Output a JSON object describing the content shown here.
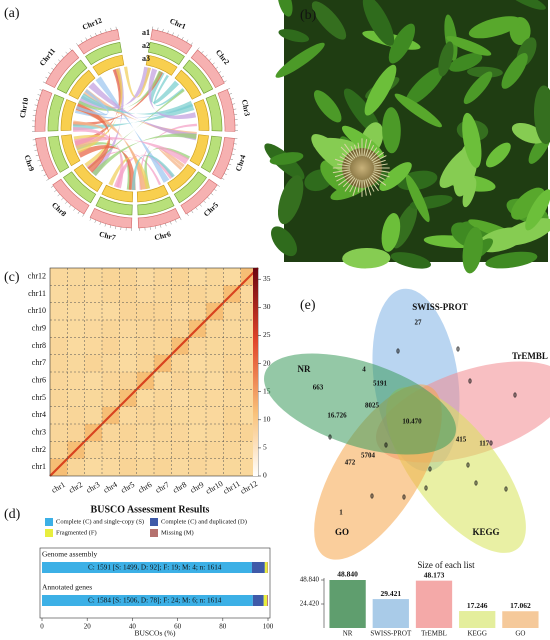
{
  "panel_labels": [
    "(a)",
    "(b)",
    "(c)",
    "(d)",
    "(e)"
  ],
  "chart_data": [
    {
      "type": "circos",
      "chromosomes": [
        "Chr1",
        "Chr2",
        "Chr3",
        "Chr4",
        "Chr5",
        "Chr6",
        "Chr7",
        "Chr8",
        "Chr9",
        "Chr10",
        "Chr11",
        "Chr12"
      ],
      "tracks": [
        "a1",
        "a2",
        "a3"
      ]
    },
    {
      "type": "heatmap",
      "categories": [
        "chr1",
        "chr2",
        "chr3",
        "chr4",
        "chr5",
        "chr6",
        "chr7",
        "chr8",
        "chr9",
        "chr10",
        "chr11",
        "chr12"
      ],
      "clim": [
        0,
        37
      ],
      "cticks": [
        0,
        5,
        10,
        15,
        20,
        25,
        30,
        35
      ]
    },
    {
      "type": "stacked_bar",
      "title": "BUSCO Assessment Results",
      "categories": [
        "Genome assembly",
        "Annotated genes"
      ],
      "bar_texts": [
        "C: 1591 [S: 1499, D: 92]; F: 19; M: 4; n: 1614",
        "C: 1584 [S: 1506, D: 78]; F: 24; M: 6; n: 1614"
      ],
      "series": [
        {
          "name": "Complete (C) and single-copy (S)",
          "color": "#3cb0e6",
          "values": [
            92.9,
            93.3
          ]
        },
        {
          "name": "Complete (C) and duplicated (D)",
          "color": "#3f5aa8",
          "values": [
            5.7,
            4.8
          ]
        },
        {
          "name": "Fragmented (F)",
          "color": "#e8ee3e",
          "values": [
            1.2,
            1.5
          ]
        },
        {
          "name": "Missing (M)",
          "color": "#b5716e",
          "values": [
            0.2,
            0.4
          ]
        }
      ],
      "xlim": [
        0,
        100
      ],
      "xticks": [
        0,
        20,
        40,
        60,
        80,
        100
      ],
      "xlabel": "BUSCOs (%)"
    },
    {
      "type": "venn",
      "sets": [
        {
          "name": "SWISS-PROT",
          "color": "#7fb2e5"
        },
        {
          "name": "TrEMBL",
          "color": "#f28b8f"
        },
        {
          "name": "KEGG",
          "color": "#d7e35a"
        },
        {
          "name": "GO",
          "color": "#f5a54a"
        },
        {
          "name": "NR",
          "color": "#3d9a5c"
        }
      ],
      "region_labels": [
        "27",
        "0",
        "0",
        "4",
        "5191",
        "0",
        "0",
        "663",
        "8025",
        "16.726",
        "10.470",
        "0",
        "5704",
        "472",
        "0",
        "415",
        "1170",
        "0",
        "0",
        "0",
        "0",
        "0",
        "1",
        "0",
        "0"
      ]
    },
    {
      "type": "bar",
      "title": "Size of each list",
      "categories": [
        "NR",
        "SWISS-PROT",
        "TrEMBL",
        "KEGG",
        "GO"
      ],
      "values": [
        48840,
        29421,
        48173,
        17246,
        17062
      ],
      "value_labels": [
        "48.840",
        "29.421",
        "48.173",
        "17.246",
        "17.062"
      ],
      "colors": [
        "#5f9e6e",
        "#a9cbe8",
        "#f4a9a8",
        "#e4ee9c",
        "#f5c99a"
      ],
      "ylim": [
        0,
        48840
      ],
      "yticks": [
        {
          "value": 24420,
          "label": "24.420"
        },
        {
          "value": 48840,
          "label": "48.840"
        }
      ]
    }
  ]
}
